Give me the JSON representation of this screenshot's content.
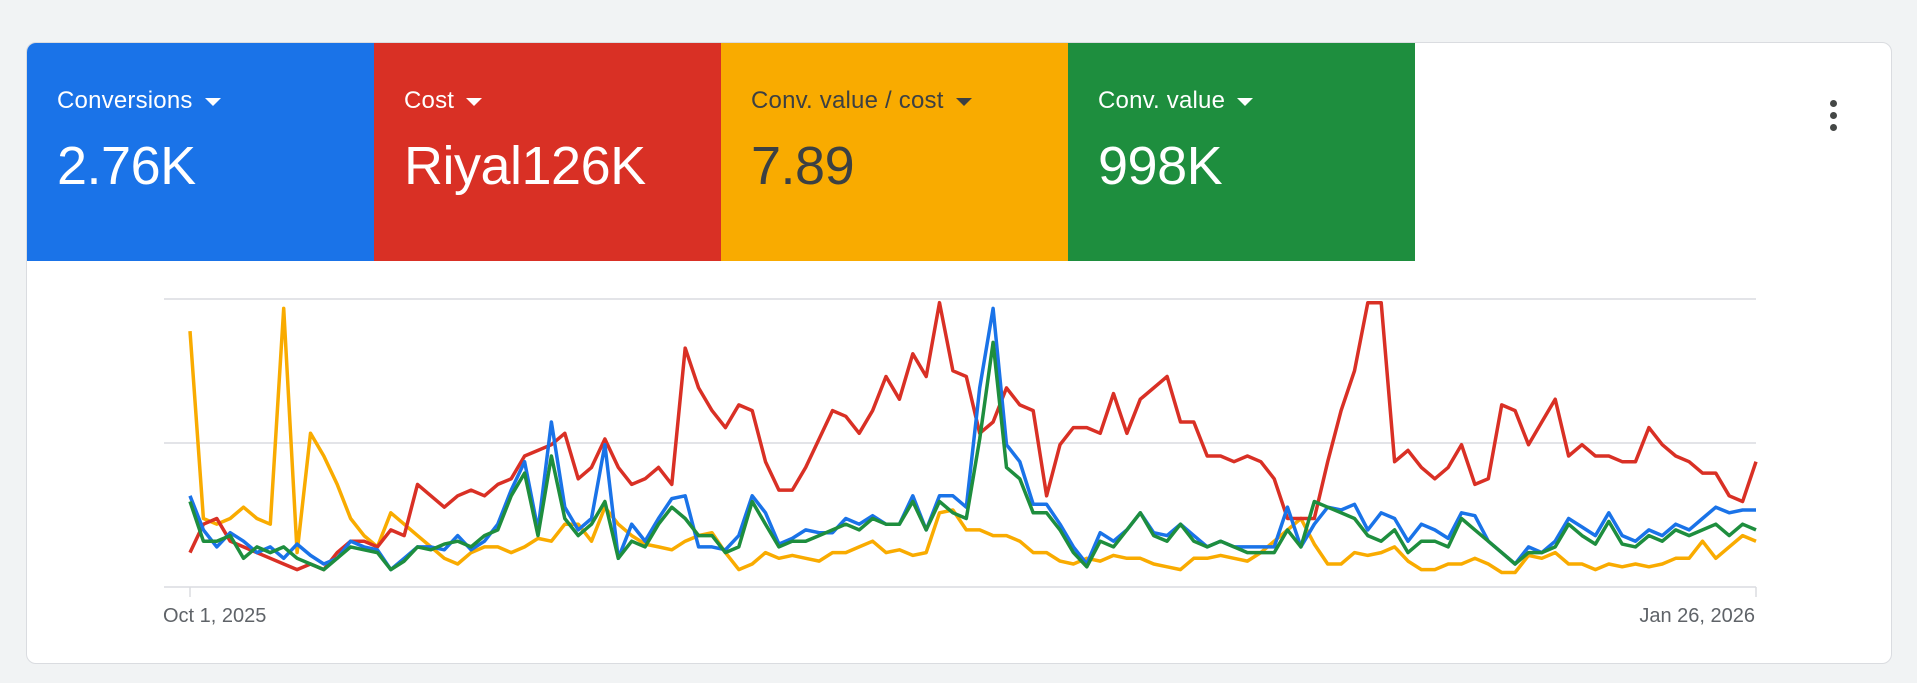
{
  "scorecards": [
    {
      "label": "Conversions",
      "value": "2.76K",
      "bg": "#1a73e8",
      "fg": "#ffffff"
    },
    {
      "label": "Cost",
      "value": "Riyal126K",
      "bg": "#d93025",
      "fg": "#ffffff"
    },
    {
      "label": "Conv. value / cost",
      "value": "7.89",
      "bg": "#f9ab00",
      "fg": "#3c4043"
    },
    {
      "label": "Conv. value",
      "value": "998K",
      "bg": "#1e8e3e",
      "fg": "#ffffff"
    }
  ],
  "menu": {
    "icon": "more-vert-icon"
  },
  "chart_data": {
    "type": "line",
    "title": "",
    "xlabel": "",
    "ylabel": "",
    "x_start_label": "Oct 1, 2025",
    "x_end_label": "Jan 26, 2026",
    "grid": true,
    "gridlines": 3,
    "y_axis_labels_visible": false,
    "y_scale": "normalized per series (0 = baseline, 100 = top gridline)",
    "legend": "Scorecard tiles act as legend (colors match series)",
    "series": [
      {
        "name": "Conversions",
        "color": "#1a73e8",
        "values": [
          30,
          18,
          12,
          17,
          14,
          10,
          12,
          8,
          13,
          9,
          6,
          8,
          14,
          12,
          11,
          4,
          8,
          12,
          12,
          11,
          16,
          11,
          14,
          20,
          32,
          42,
          18,
          56,
          26,
          18,
          22,
          48,
          8,
          20,
          14,
          22,
          29,
          30,
          12,
          12,
          11,
          16,
          30,
          24,
          13,
          15,
          18,
          17,
          17,
          22,
          20,
          23,
          20,
          20,
          30,
          18,
          30,
          30,
          26,
          68,
          96,
          48,
          42,
          27,
          27,
          20,
          12,
          6,
          17,
          14,
          18,
          24,
          17,
          16,
          20,
          16,
          12,
          14,
          12,
          12,
          12,
          12,
          26,
          12,
          20,
          26,
          25,
          27,
          18,
          24,
          22,
          14,
          20,
          18,
          15,
          24,
          23,
          14,
          10,
          6,
          12,
          10,
          14,
          22,
          19,
          16,
          24,
          16,
          14,
          18,
          16,
          20,
          18,
          22,
          26,
          24,
          25,
          25
        ]
      },
      {
        "name": "Cost",
        "color": "#d93025",
        "values": [
          10,
          20,
          22,
          14,
          12,
          10,
          8,
          6,
          4,
          6,
          4,
          10,
          14,
          14,
          12,
          18,
          16,
          34,
          30,
          26,
          30,
          32,
          30,
          34,
          36,
          44,
          46,
          48,
          52,
          36,
          40,
          50,
          40,
          34,
          36,
          40,
          34,
          82,
          68,
          60,
          54,
          62,
          60,
          42,
          32,
          32,
          40,
          50,
          60,
          58,
          52,
          60,
          72,
          64,
          80,
          72,
          98,
          74,
          72,
          52,
          56,
          68,
          62,
          60,
          30,
          48,
          54,
          54,
          52,
          66,
          52,
          64,
          68,
          72,
          56,
          56,
          44,
          44,
          42,
          44,
          42,
          36,
          22,
          22,
          22,
          42,
          60,
          74,
          98,
          98,
          42,
          46,
          40,
          36,
          40,
          48,
          34,
          36,
          62,
          60,
          48,
          56,
          64,
          44,
          48,
          44,
          44,
          42,
          42,
          54,
          48,
          44,
          42,
          38,
          38,
          30,
          28,
          42
        ]
      },
      {
        "name": "Conv. value / cost",
        "color": "#f9ab00",
        "values": [
          88,
          22,
          20,
          22,
          26,
          22,
          20,
          96,
          10,
          52,
          44,
          34,
          22,
          16,
          12,
          24,
          20,
          16,
          12,
          8,
          6,
          10,
          12,
          12,
          10,
          12,
          15,
          14,
          20,
          20,
          14,
          26,
          20,
          16,
          13,
          12,
          11,
          14,
          16,
          17,
          10,
          4,
          6,
          10,
          8,
          9,
          8,
          7,
          10,
          10,
          12,
          14,
          10,
          11,
          9,
          10,
          24,
          25,
          18,
          18,
          16,
          16,
          14,
          10,
          10,
          7,
          6,
          8,
          7,
          9,
          8,
          8,
          6,
          5,
          4,
          8,
          8,
          9,
          8,
          7,
          10,
          14,
          18,
          22,
          13,
          6,
          6,
          10,
          9,
          10,
          12,
          7,
          4,
          4,
          6,
          6,
          8,
          6,
          3,
          3,
          9,
          8,
          10,
          6,
          6,
          4,
          6,
          5,
          6,
          5,
          6,
          8,
          8,
          14,
          8,
          12,
          16,
          14
        ]
      },
      {
        "name": "Conv. value",
        "color": "#1e8e3e",
        "values": [
          28,
          14,
          14,
          16,
          8,
          12,
          10,
          12,
          8,
          6,
          4,
          8,
          12,
          11,
          10,
          4,
          7,
          12,
          11,
          13,
          14,
          12,
          16,
          18,
          30,
          38,
          16,
          44,
          22,
          16,
          20,
          28,
          8,
          14,
          12,
          20,
          26,
          22,
          16,
          16,
          10,
          12,
          28,
          20,
          12,
          14,
          14,
          16,
          18,
          20,
          18,
          22,
          20,
          20,
          28,
          18,
          28,
          24,
          22,
          50,
          84,
          40,
          36,
          24,
          24,
          18,
          10,
          5,
          14,
          12,
          18,
          24,
          16,
          14,
          20,
          14,
          12,
          14,
          12,
          10,
          10,
          10,
          18,
          12,
          28,
          26,
          24,
          22,
          16,
          14,
          18,
          10,
          14,
          14,
          12,
          22,
          18,
          14,
          10,
          6,
          10,
          10,
          12,
          20,
          16,
          13,
          21,
          13,
          12,
          16,
          14,
          18,
          16,
          18,
          20,
          16,
          20,
          18
        ]
      }
    ]
  }
}
